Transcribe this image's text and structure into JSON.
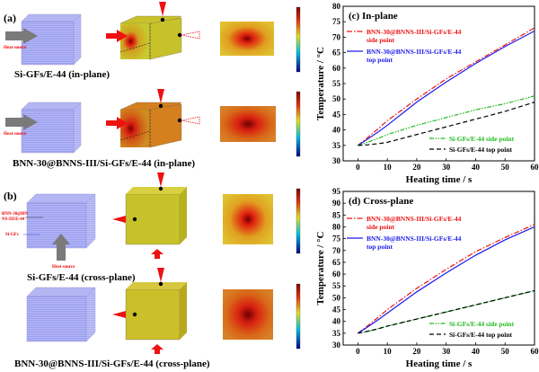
{
  "figure": {
    "panel_a_label": "(a)",
    "panel_b_label": "(b)",
    "heat_source": "Heat source",
    "caption_a1": "Si-GFs/E-44 (in-plane)",
    "caption_a2": "BNN-30@BNNS-III/Si-GFs/E-44 (in-plane)",
    "caption_b1": "Si-GFs/E-44 (cross-plane)",
    "caption_b2": "BNN-30@BNNS-III/Si-GFs/E-44 (cross-plane)",
    "layer_label_1": "BNN-30@BN",
    "layer_label_2": "NS-III/E-44",
    "layer_label_3": "Si-GFs",
    "colors": {
      "block": "#9a9ef0",
      "arrow_gray": "#7a7a7a",
      "arrow_red": "#ee1111",
      "cube_yellow": "#c9c22a",
      "cube_orange": "#d4801e"
    }
  },
  "chart_data": [
    {
      "type": "line",
      "title": "(c) In-plane",
      "xlabel": "Heating time / s",
      "ylabel": "Temperature / °C",
      "xlim": [
        -5,
        60
      ],
      "ylim": [
        30,
        80
      ],
      "xticks": [
        0,
        10,
        20,
        30,
        40,
        50,
        60
      ],
      "yticks": [
        30,
        35,
        40,
        45,
        50,
        55,
        60,
        65,
        70,
        75,
        80
      ],
      "grid": false,
      "x": [
        0,
        10,
        20,
        30,
        40,
        50,
        60
      ],
      "series": [
        {
          "name": "BNN-30@BNNS-III/Si-GFs/E-44",
          "name2": "side point",
          "color": "#ee1111",
          "dash": "dashdot",
          "values": [
            35,
            43,
            50,
            56.5,
            62,
            67.5,
            73
          ]
        },
        {
          "name": "BNN-30@BNNS-III/Si-GFs/E-44",
          "name2": "top point",
          "color": "#1a1aee",
          "dash": "solid",
          "values": [
            35,
            41.5,
            49,
            55.5,
            61.5,
            67,
            72
          ]
        },
        {
          "name": "Si-GFs/E-44  side point",
          "name2": "",
          "color": "#22bb22",
          "dash": "dashdotdot",
          "values": [
            35,
            38.5,
            41.5,
            44,
            46.5,
            48.5,
            51
          ]
        },
        {
          "name": "Si-GFs/E-44  top point",
          "name2": "",
          "color": "#000000",
          "dash": "dashed",
          "values": [
            35,
            36,
            38.5,
            41,
            43.5,
            46,
            49
          ]
        }
      ]
    },
    {
      "type": "line",
      "title": "(d) Cross-plane",
      "xlabel": "Heating time / s",
      "ylabel": "Temperature / °C",
      "xlim": [
        -5,
        60
      ],
      "ylim": [
        30,
        95
      ],
      "xticks": [
        0,
        10,
        20,
        30,
        40,
        50,
        60
      ],
      "yticks": [
        30,
        35,
        40,
        45,
        50,
        55,
        60,
        65,
        70,
        75,
        80,
        85,
        90,
        95
      ],
      "grid": false,
      "x": [
        0,
        10,
        20,
        30,
        40,
        50,
        60
      ],
      "series": [
        {
          "name": "BNN-30@BNNS-III/Si-GFs/E-44",
          "name2": "side point",
          "color": "#ee1111",
          "dash": "dashdot",
          "values": [
            35,
            45,
            54,
            62,
            69.5,
            75.5,
            81
          ]
        },
        {
          "name": "BNN-30@BNNS-III/Si-GFs/E-44",
          "name2": "top point",
          "color": "#1a1aee",
          "dash": "solid",
          "values": [
            35,
            43.5,
            52.5,
            60.5,
            68,
            74.5,
            80
          ]
        },
        {
          "name": "Si-GFs/E-44 side point",
          "name2": "",
          "color": "#22bb22",
          "dash": "dashdotdot",
          "values": [
            35,
            38,
            41,
            44,
            47,
            50,
            53
          ]
        },
        {
          "name": "Si-GFs/E-44 top point",
          "name2": "",
          "color": "#000000",
          "dash": "dashed",
          "values": [
            35,
            38,
            41,
            44,
            47,
            50,
            53
          ]
        }
      ]
    }
  ]
}
